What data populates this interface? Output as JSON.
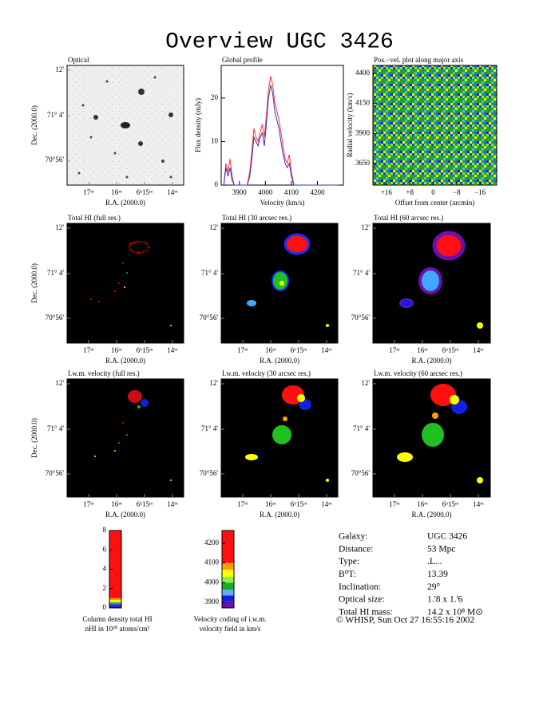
{
  "title": "Overview UGC 3426",
  "tick_labels": {
    "dec": [
      "12'",
      "71° 4'",
      "70°56'"
    ],
    "ra": [
      "17ᵐ",
      "16ᵐ",
      "6ʰ15ᵐ",
      "14ᵐ"
    ]
  },
  "axis_labels": {
    "dec": "Dec. (2000.0)",
    "ra": "R.A. (2000.0)"
  },
  "maps": [
    {
      "title": "Optical"
    },
    {
      "title": "Total HI (full res.)"
    },
    {
      "title": "Total HI (30 arcsec res.)"
    },
    {
      "title": "Total HI (60 arcsec res.)"
    },
    {
      "title": "I.w.m. velocity (full res.)"
    },
    {
      "title": "I.w.m. velocity (30 arcsec res.)"
    },
    {
      "title": "I.w.m. velocity (60 arcsec res.)"
    }
  ],
  "chart_data": [
    {
      "type": "line",
      "title": "Global profile",
      "xlabel": "Velocity (km/s)",
      "ylabel": "Flux density (mJy)",
      "x": [
        3840,
        3848,
        3856,
        3864,
        3872,
        3880,
        3890,
        3900,
        3910,
        3920,
        3930,
        3940,
        3948,
        3956,
        3964,
        3972,
        3980,
        3988,
        3996,
        4004,
        4012,
        4020,
        4028,
        4036,
        4044,
        4052,
        4060,
        4068,
        4076,
        4084,
        4092,
        4100,
        4110,
        4120,
        4140,
        4160,
        4180,
        4200,
        4220,
        4240,
        4260,
        4280
      ],
      "series": [
        {
          "color": "#ff3030",
          "values": [
            0,
            5,
            3,
            6,
            2,
            0,
            0,
            0,
            0,
            0,
            0,
            3,
            8,
            13,
            11,
            10,
            12,
            14,
            11,
            16,
            22,
            25,
            23,
            19,
            17,
            15,
            12,
            9,
            6,
            5,
            7,
            3,
            0,
            0,
            0,
            0,
            0,
            0,
            0,
            0,
            0,
            0
          ]
        },
        {
          "color": "#3a2fc0",
          "values": [
            0,
            4,
            2,
            4,
            1,
            0,
            0,
            0,
            0,
            0,
            0,
            2,
            6,
            11,
            10,
            9,
            11,
            12,
            9,
            14,
            20,
            23,
            21,
            17,
            15,
            13,
            10,
            7,
            5,
            4,
            5,
            2,
            0,
            0,
            0,
            0,
            0,
            0,
            0,
            0,
            0,
            0
          ]
        }
      ],
      "xlim": [
        3830,
        4300
      ],
      "ylim": [
        0,
        27.5
      ],
      "xticks": [
        3900,
        4000,
        4100,
        4200
      ],
      "yticks": [
        0,
        10,
        20
      ]
    },
    {
      "type": "pv",
      "title": "Pos.−vel. plot along major axis",
      "xlabel": "Offset from center (arcmin)",
      "ylabel": "Radial velocity (km/s)",
      "xlim": [
        20.6,
        -21.7
      ],
      "ylim": [
        3472,
        4466
      ],
      "xticks": [
        {
          "value": 16,
          "label": "+16"
        },
        {
          "value": 8,
          "label": "+8"
        },
        0,
        {
          "value": -8,
          "label": "−8"
        },
        {
          "value": -16,
          "label": "−16"
        }
      ],
      "yticks": [
        3650,
        3900,
        4150,
        4400
      ]
    },
    {
      "type": "colorbar",
      "caption": [
        "Column density total HI",
        "nHI in 10²⁰ atoms/cm²"
      ],
      "ylim": [
        0,
        8
      ],
      "yticks": [
        0,
        2,
        4,
        6,
        8
      ],
      "bands": [
        {
          "range": [
            0,
            0.2
          ],
          "color": "#4b0fa0"
        },
        {
          "range": [
            0.2,
            0.4
          ],
          "color": "#1030ff"
        },
        {
          "range": [
            0.4,
            0.6
          ],
          "color": "#20c020"
        },
        {
          "range": [
            0.6,
            0.8
          ],
          "color": "#ffff00"
        },
        {
          "range": [
            0.8,
            1.0
          ],
          "color": "#ff9900"
        },
        {
          "range": [
            1.0,
            8
          ],
          "color": "#ff1010"
        }
      ]
    },
    {
      "type": "colorbar",
      "caption": [
        "Velocity coding of i.w.m.",
        "velocity field in km/s"
      ],
      "ylim": [
        3872,
        4264
      ],
      "yticks": [
        3900,
        4000,
        4100,
        4200
      ],
      "bands": [
        {
          "range": [
            3872,
            3905
          ],
          "color": "#6a10b0"
        },
        {
          "range": [
            3905,
            3935
          ],
          "color": "#1020e0"
        },
        {
          "range": [
            3935,
            3965
          ],
          "color": "#60a8ff"
        },
        {
          "range": [
            3965,
            4000
          ],
          "color": "#10b020"
        },
        {
          "range": [
            4000,
            4030
          ],
          "color": "#90f040"
        },
        {
          "range": [
            4030,
            4065
          ],
          "color": "#ffff00"
        },
        {
          "range": [
            4065,
            4100
          ],
          "color": "#ffa000"
        },
        {
          "range": [
            4100,
            4264
          ],
          "color": "#ff1010"
        }
      ]
    }
  ],
  "info": {
    "rows": [
      [
        "Galaxy:",
        "UGC 3426"
      ],
      [
        "Distance:",
        "53 Mpc"
      ],
      [
        "Type:",
        ".L..."
      ],
      [
        "B⁰T:",
        "13.39"
      ],
      [
        "Inclination:",
        "29°"
      ],
      [
        "Optical size:",
        "1.'8 x 1.'6"
      ],
      [
        "Total HI mass:",
        "14.2 x 10⁸ M⊙"
      ]
    ]
  },
  "footer": "© WHISP, Sun Oct 27 16:55:16 2002"
}
